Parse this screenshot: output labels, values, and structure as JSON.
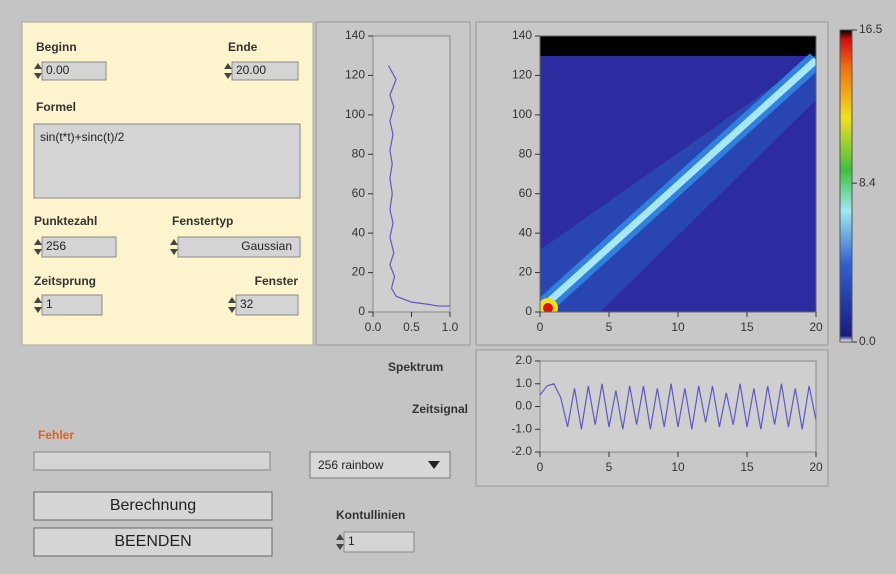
{
  "controls": {
    "beginn": {
      "label": "Beginn",
      "value": "0.00"
    },
    "ende": {
      "label": "Ende",
      "value": "20.00"
    },
    "formel": {
      "label": "Formel",
      "value": "sin(t*t)+sinc(t)/2"
    },
    "punktezahl": {
      "label": "Punktezahl",
      "value": "256"
    },
    "fenstertyp": {
      "label": "Fenstertyp",
      "value": "Gaussian"
    },
    "zeitsprung": {
      "label": "Zeitsprung",
      "value": "1"
    },
    "fenster": {
      "label": "Fenster",
      "value": "32"
    },
    "fehler": {
      "label": "Fehler"
    },
    "colormap": {
      "value": "256 rainbow"
    },
    "kontullinien": {
      "label": "Kontullinien",
      "value": "1"
    },
    "buttons": [
      "Berechnung",
      "BEENDEN"
    ]
  },
  "chart_data": [
    {
      "type": "line",
      "label": "Spektrum",
      "x": [
        0.2,
        0.3,
        0.22,
        0.27,
        0.22,
        0.26,
        0.22,
        0.25,
        0.22,
        0.25,
        0.22,
        0.26,
        0.22,
        0.27,
        0.22,
        0.28,
        0.24,
        0.3,
        0.5,
        0.7,
        0.85,
        1.0
      ],
      "series": [
        {
          "color": "#5a5ac8",
          "values": [
            125,
            118,
            110,
            104,
            97,
            90,
            82,
            75,
            68,
            60,
            52,
            45,
            38,
            30,
            24,
            18,
            12,
            8,
            5,
            4,
            3,
            3
          ]
        }
      ],
      "xlim": [
        0,
        1
      ],
      "ylim": [
        0,
        140
      ],
      "xticks": [
        {
          "value": 0,
          "label": "0.0"
        },
        {
          "value": 0.5,
          "label": "0.5"
        },
        {
          "value": 1,
          "label": "1.0"
        }
      ],
      "yticks": [
        0,
        20,
        40,
        60,
        80,
        100,
        120,
        140
      ]
    },
    {
      "type": "heatmap",
      "xlim": [
        0,
        20
      ],
      "ylim": [
        0,
        140
      ],
      "xticks": [
        0,
        5,
        10,
        15,
        20
      ],
      "yticks": [
        0,
        20,
        40,
        60,
        80,
        100,
        120,
        140
      ]
    },
    {
      "type": "line",
      "label": "Zeitsignal",
      "x": [
        0,
        0.5,
        1,
        1.5,
        2,
        2.5,
        3,
        3.5,
        4,
        4.5,
        5,
        5.5,
        6,
        6.5,
        7,
        7.5,
        8,
        8.5,
        9,
        9.5,
        10,
        10.5,
        11,
        11.5,
        12,
        12.5,
        13,
        13.5,
        14,
        14.5,
        15,
        15.5,
        16,
        16.5,
        17,
        17.5,
        18,
        18.5,
        19,
        19.5,
        20
      ],
      "series": [
        {
          "color": "#5a5ac8",
          "values": [
            0.5,
            0.9,
            1.0,
            0.4,
            -0.9,
            0.8,
            -1.0,
            0.9,
            -0.8,
            1.0,
            -0.9,
            0.7,
            -1.0,
            0.9,
            -0.8,
            0.9,
            -1.0,
            0.8,
            -0.9,
            1.0,
            -0.9,
            0.8,
            -1.0,
            0.9,
            -0.7,
            0.9,
            -0.9,
            0.6,
            -0.8,
            1.0,
            -0.9,
            0.8,
            -1.0,
            0.9,
            -0.8,
            1.0,
            -0.9,
            0.8,
            -1.0,
            0.9,
            -0.6
          ]
        }
      ],
      "xlim": [
        0,
        20
      ],
      "ylim": [
        -2,
        2
      ],
      "xticks": [
        0,
        5,
        10,
        15,
        20
      ],
      "yticks": [
        {
          "value": 2,
          "label": "2.0"
        },
        {
          "value": 1,
          "label": "1.0"
        },
        {
          "value": 0,
          "label": "0.0"
        },
        {
          "value": -1,
          "label": "-1.0"
        },
        {
          "value": -2,
          "label": "-2.0"
        }
      ]
    },
    {
      "type": "colorbar",
      "ylim": [
        0,
        16.5
      ],
      "yticks": [
        {
          "value": 0,
          "label": "0.0"
        },
        8.4,
        16.5
      ]
    }
  ]
}
